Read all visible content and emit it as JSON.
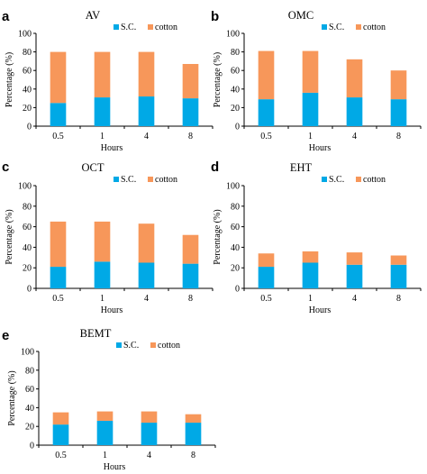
{
  "colors": {
    "sc": "#00a9e6",
    "cotton": "#f7975a",
    "axis": "#000000"
  },
  "chart_data": [
    {
      "type": "bar",
      "stacked": true,
      "panel": "a",
      "title": "AV",
      "xlabel": "Hours",
      "ylabel": "Percentage (%)",
      "ylim": [
        0,
        100
      ],
      "yticks": [
        0,
        20,
        40,
        60,
        80,
        100
      ],
      "categories": [
        "0.5",
        "1",
        "4",
        "8"
      ],
      "legend": "top-center",
      "series": [
        {
          "name": "S.C.",
          "color_key": "sc",
          "values": [
            25,
            31,
            32,
            30
          ]
        },
        {
          "name": "cotton",
          "color_key": "cotton",
          "values": [
            55,
            49,
            48,
            37
          ]
        }
      ]
    },
    {
      "type": "bar",
      "stacked": true,
      "panel": "b",
      "title": "OMC",
      "xlabel": "Hours",
      "ylabel": "Percentage (%)",
      "ylim": [
        0,
        100
      ],
      "yticks": [
        0,
        20,
        40,
        60,
        80,
        100
      ],
      "categories": [
        "0.5",
        "1",
        "4",
        "8"
      ],
      "legend": "top-center",
      "series": [
        {
          "name": "S.C.",
          "color_key": "sc",
          "values": [
            29,
            36,
            31,
            29
          ]
        },
        {
          "name": "cotton",
          "color_key": "cotton",
          "values": [
            52,
            45,
            41,
            31
          ]
        }
      ]
    },
    {
      "type": "bar",
      "stacked": true,
      "panel": "c",
      "title": "OCT",
      "xlabel": "Hours",
      "ylabel": "Percentage (%)",
      "ylim": [
        0,
        100
      ],
      "yticks": [
        0,
        20,
        40,
        60,
        80,
        100
      ],
      "categories": [
        "0.5",
        "1",
        "4",
        "8"
      ],
      "legend": "top-center",
      "series": [
        {
          "name": "S.C.",
          "color_key": "sc",
          "values": [
            21,
            26,
            25,
            24
          ]
        },
        {
          "name": "cotton",
          "color_key": "cotton",
          "values": [
            44,
            39,
            38,
            28
          ]
        }
      ]
    },
    {
      "type": "bar",
      "stacked": true,
      "panel": "d",
      "title": "EHT",
      "xlabel": "Hours",
      "ylabel": "Percentage (%)",
      "ylim": [
        0,
        100
      ],
      "yticks": [
        0,
        20,
        40,
        60,
        80,
        100
      ],
      "categories": [
        "0.5",
        "1",
        "4",
        "8"
      ],
      "legend": "top-center",
      "series": [
        {
          "name": "S.C.",
          "color_key": "sc",
          "values": [
            21,
            25,
            23,
            23
          ]
        },
        {
          "name": "cotton",
          "color_key": "cotton",
          "values": [
            13,
            11,
            12,
            9
          ]
        }
      ]
    },
    {
      "type": "bar",
      "stacked": true,
      "panel": "e",
      "title": "BEMT",
      "xlabel": "Hours",
      "ylabel": "Percentage (%)",
      "ylim": [
        0,
        100
      ],
      "yticks": [
        0,
        20,
        40,
        60,
        80,
        100
      ],
      "categories": [
        "0.5",
        "1",
        "4",
        "8"
      ],
      "legend": "top-center",
      "series": [
        {
          "name": "S.C.",
          "color_key": "sc",
          "values": [
            22,
            26,
            24,
            24
          ]
        },
        {
          "name": "cotton",
          "color_key": "cotton",
          "values": [
            13,
            10,
            12,
            9
          ]
        }
      ]
    }
  ]
}
